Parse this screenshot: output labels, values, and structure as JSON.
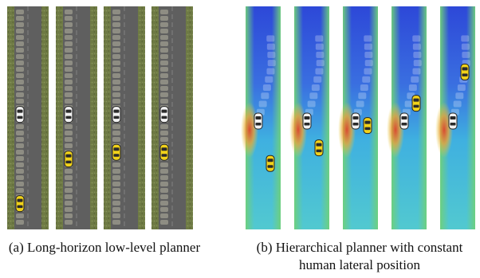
{
  "panel_a": {
    "caption": "(a) Long-horizon low-level planner",
    "road_color": "#5f5f5f",
    "grass_color": "#6e7a44",
    "frames": [
      {
        "white_car_progress": 0.52,
        "yellow_car_progress": 0.92,
        "trail": "full"
      },
      {
        "white_car_progress": 0.52,
        "yellow_car_progress": 0.72,
        "trail": "full"
      },
      {
        "white_car_progress": 0.52,
        "yellow_car_progress": 0.69,
        "trail": "full"
      },
      {
        "white_car_progress": 0.52,
        "yellow_car_progress": 0.69,
        "trail": "full"
      }
    ]
  },
  "panel_b": {
    "caption": "(b) Hierarchical planner with constant human lateral position",
    "heatmap_colors": {
      "high": "#2d48d8",
      "mid": "#3fb0e0",
      "low": "#52c9d0",
      "edge": "#6fd07a",
      "hot": "#e0452a"
    },
    "frames": [
      {
        "white_car_progress": 0.55,
        "yellow_car_progress": 0.74
      },
      {
        "white_car_progress": 0.55,
        "yellow_car_progress": 0.67
      },
      {
        "white_car_progress": 0.55,
        "yellow_car_progress": 0.57
      },
      {
        "white_car_progress": 0.55,
        "yellow_car_progress": 0.47
      },
      {
        "white_car_progress": 0.55,
        "yellow_car_progress": 0.33
      }
    ]
  }
}
